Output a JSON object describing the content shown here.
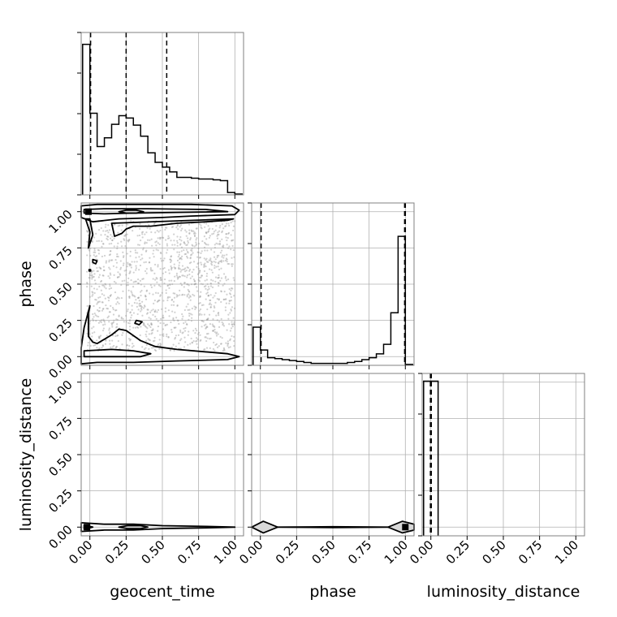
{
  "chart_data": {
    "type": "corner",
    "parameters": [
      "geocent_time",
      "phase",
      "luminosity_distance"
    ],
    "axis_labels": [
      "geocent_time",
      "phase",
      "luminosity_distance"
    ],
    "tick_labels": [
      "0.00",
      "0.25",
      "0.50",
      "0.75",
      "1.00"
    ],
    "ticks": [
      0,
      0.25,
      0.5,
      0.75,
      1.0
    ],
    "xlim": [
      -0.06,
      1.06
    ],
    "ylim": [
      -0.06,
      1.06
    ],
    "grid": true,
    "colors": {
      "line": "#000000",
      "grid": "#b0b0b0",
      "scatter": "#9a9a9a",
      "contour_fill": "#d8d8d8"
    },
    "histograms": [
      {
        "parameter": "geocent_time",
        "bin_edges": [
          -0.05,
          0.0,
          0.05,
          0.1,
          0.15,
          0.2,
          0.25,
          0.3,
          0.35,
          0.4,
          0.45,
          0.5,
          0.55,
          0.6,
          0.65,
          0.7,
          0.75,
          0.8,
          0.85,
          0.9,
          0.95,
          1.0,
          1.05
        ],
        "counts": [
          190,
          103,
          61,
          72,
          89,
          100,
          97,
          88,
          74,
          53,
          41,
          35,
          29,
          22,
          22,
          21,
          20,
          20,
          19,
          18,
          3,
          1
        ],
        "ymax": 205,
        "quantiles": [
          0.005,
          0.25,
          0.53
        ]
      },
      {
        "parameter": "phase",
        "bin_edges": [
          -0.05,
          0.0,
          0.05,
          0.1,
          0.15,
          0.2,
          0.25,
          0.3,
          0.35,
          0.4,
          0.45,
          0.5,
          0.55,
          0.6,
          0.65,
          0.7,
          0.75,
          0.8,
          0.85,
          0.9,
          0.95,
          1.0,
          1.05
        ],
        "counts": [
          40,
          16,
          8,
          7,
          6,
          5,
          4,
          3,
          2,
          2,
          2,
          2,
          2,
          3,
          4,
          6,
          8,
          12,
          22,
          55,
          135,
          1
        ],
        "ymax": 170,
        "quantiles": [
          0.005,
          0.995,
          1.0
        ]
      },
      {
        "parameter": "luminosity_distance",
        "bin_edges": [
          -0.05,
          0.0,
          0.05
        ],
        "counts": [
          1000,
          1000
        ],
        "ymax": 1050,
        "quantiles": [
          -0.003,
          0.0,
          0.003
        ]
      }
    ],
    "pairs": [
      {
        "x": "geocent_time",
        "y": "phase",
        "scatter": {
          "n": 1400,
          "seed": 7
        },
        "contours": [
          {
            "fill": false,
            "points": [
              [
                -0.06,
                0.96
              ],
              [
                0.02,
                0.93
              ],
              [
                0.2,
                0.95
              ],
              [
                0.5,
                0.96
              ],
              [
                0.7,
                0.97
              ],
              [
                1.0,
                0.98
              ],
              [
                1.03,
                1.01
              ],
              [
                0.98,
                1.04
              ],
              [
                0.7,
                1.05
              ],
              [
                0.3,
                1.05
              ],
              [
                0.05,
                1.05
              ],
              [
                -0.06,
                1.04
              ]
            ]
          },
          {
            "fill": false,
            "points": [
              [
                -0.04,
                0.99
              ],
              [
                0.1,
                0.985
              ],
              [
                0.3,
                0.99
              ],
              [
                0.6,
                0.995
              ],
              [
                0.95,
                1.0
              ],
              [
                0.8,
                1.015
              ],
              [
                0.4,
                1.02
              ],
              [
                0.1,
                1.02
              ],
              [
                -0.04,
                1.015
              ]
            ]
          },
          {
            "fill": true,
            "points": [
              [
                0.2,
                1.0
              ],
              [
                0.25,
                0.99
              ],
              [
                0.32,
                0.99
              ],
              [
                0.37,
                1.0
              ],
              [
                0.32,
                1.01
              ],
              [
                0.25,
                1.01
              ]
            ]
          },
          {
            "fill": false,
            "points": [
              [
                0.0,
                0.95
              ],
              [
                0.02,
                0.84
              ],
              [
                -0.01,
                0.75
              ],
              [
                0.0,
                0.86
              ],
              [
                -0.03,
                0.95
              ]
            ]
          },
          {
            "fill": false,
            "points": [
              [
                0.15,
                0.92
              ],
              [
                0.17,
                0.83
              ],
              [
                0.22,
                0.85
              ],
              [
                0.25,
                0.88
              ],
              [
                0.3,
                0.9
              ],
              [
                0.42,
                0.9
              ],
              [
                0.6,
                0.92
              ],
              [
                0.8,
                0.93
              ],
              [
                0.95,
                0.94
              ],
              [
                0.99,
                0.95
              ]
            ]
          },
          {
            "fill": false,
            "points": [
              [
                0.02,
                0.67
              ],
              [
                0.05,
                0.66
              ],
              [
                0.04,
                0.64
              ],
              [
                0.02,
                0.65
              ]
            ]
          },
          {
            "fill": true,
            "points": [
              [
                -0.005,
                0.6
              ],
              [
                0.005,
                0.6
              ],
              [
                0.005,
                0.59
              ],
              [
                -0.005,
                0.59
              ]
            ]
          },
          {
            "fill": false,
            "points": [
              [
                0.32,
                0.25
              ],
              [
                0.36,
                0.24
              ],
              [
                0.34,
                0.22
              ],
              [
                0.31,
                0.23
              ]
            ]
          },
          {
            "fill": false,
            "points": [
              [
                -0.06,
                -0.05
              ],
              [
                0.05,
                -0.04
              ],
              [
                0.3,
                -0.04
              ],
              [
                0.6,
                -0.03
              ],
              [
                0.95,
                -0.02
              ],
              [
                1.03,
                0.0
              ],
              [
                0.95,
                0.02
              ],
              [
                0.6,
                0.05
              ],
              [
                0.45,
                0.07
              ],
              [
                0.35,
                0.11
              ],
              [
                0.25,
                0.18
              ],
              [
                0.2,
                0.19
              ],
              [
                0.15,
                0.15
              ],
              [
                0.05,
                0.09
              ],
              [
                0.02,
                0.1
              ],
              [
                -0.01,
                0.14
              ],
              [
                -0.01,
                0.3
              ],
              [
                0.0,
                0.35
              ],
              [
                -0.04,
                0.2
              ],
              [
                -0.06,
                0.06
              ]
            ]
          },
          {
            "fill": false,
            "points": [
              [
                -0.04,
                0.0
              ],
              [
                0.15,
                0.0
              ],
              [
                0.35,
                0.0
              ],
              [
                0.42,
                0.02
              ],
              [
                0.3,
                0.04
              ],
              [
                0.15,
                0.05
              ],
              [
                -0.04,
                0.04
              ]
            ]
          }
        ],
        "modes": [
          [
            -0.01,
            1.0
          ]
        ]
      },
      {
        "x": "geocent_time",
        "y": "luminosity_distance",
        "contours": [
          {
            "fill": false,
            "points": [
              [
                -0.06,
                -0.03
              ],
              [
                0.1,
                -0.02
              ],
              [
                0.3,
                -0.02
              ],
              [
                0.5,
                -0.01
              ],
              [
                0.8,
                -0.005
              ],
              [
                1.0,
                0.0
              ],
              [
                0.8,
                0.005
              ],
              [
                0.5,
                0.01
              ],
              [
                0.3,
                0.02
              ],
              [
                0.1,
                0.02
              ],
              [
                -0.06,
                0.03
              ]
            ]
          },
          {
            "fill": true,
            "points": [
              [
                0.2,
                0.0
              ],
              [
                0.26,
                -0.01
              ],
              [
                0.35,
                -0.01
              ],
              [
                0.4,
                0.0
              ],
              [
                0.35,
                0.01
              ],
              [
                0.26,
                0.01
              ]
            ]
          },
          {
            "fill": true,
            "points": [
              [
                -0.04,
                -0.015
              ],
              [
                0.02,
                0.0
              ],
              [
                -0.04,
                0.015
              ]
            ]
          }
        ],
        "modes": [
          [
            -0.02,
            0.0
          ]
        ]
      },
      {
        "x": "phase",
        "y": "luminosity_distance",
        "contours": [
          {
            "fill": true,
            "points": [
              [
                -0.06,
                0.0
              ],
              [
                0.02,
                -0.04
              ],
              [
                0.12,
                0.0
              ],
              [
                0.02,
                0.04
              ]
            ]
          },
          {
            "fill": false,
            "points": [
              [
                0.12,
                0.0
              ],
              [
                0.5,
                -0.003
              ],
              [
                0.88,
                0.0
              ],
              [
                0.5,
                0.003
              ]
            ]
          },
          {
            "fill": true,
            "points": [
              [
                0.88,
                0.0
              ],
              [
                0.98,
                -0.04
              ],
              [
                1.06,
                -0.02
              ],
              [
                1.06,
                0.02
              ],
              [
                0.98,
                0.04
              ]
            ]
          }
        ],
        "modes": [
          [
            1.0,
            0.0
          ]
        ]
      }
    ]
  }
}
